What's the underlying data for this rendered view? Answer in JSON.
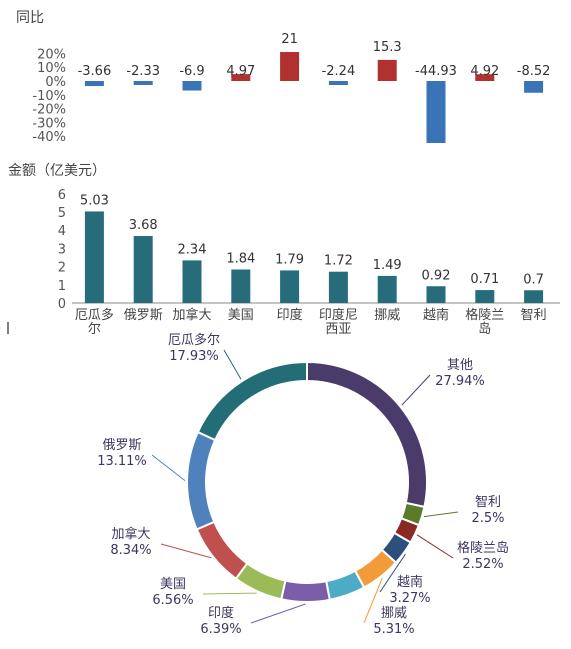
{
  "chart_data": [
    {
      "type": "bar",
      "title": "同比",
      "categories": [
        "厄瓜多尔",
        "俄罗斯",
        "加拿大",
        "美国",
        "印度",
        "印度尼西亚",
        "挪威",
        "越南",
        "格陵兰岛",
        "智利"
      ],
      "values": [
        -3.66,
        -2.33,
        -6.9,
        4.97,
        21,
        -2.24,
        15.3,
        -44.93,
        4.92,
        -8.52
      ],
      "value_labels": [
        "-3.66",
        "-2.33",
        "-6.9",
        "4.97",
        "21",
        "-2.24",
        "15.3",
        "-44.93",
        "4.92",
        "-8.52"
      ],
      "ylim": [
        -40,
        20
      ],
      "yticks": [
        "20%",
        "10%",
        "0%",
        "-10%",
        "-20%",
        "-30%",
        "-40%"
      ],
      "colors": {
        "positive": "#b13131",
        "negative": "#3b73b9"
      },
      "grid": false
    },
    {
      "type": "bar",
      "title": "金额（亿美元）",
      "categories": [
        "厄瓜多尔",
        "俄罗斯",
        "加拿大",
        "美国",
        "印度",
        "印度尼西亚",
        "挪威",
        "越南",
        "格陵兰岛",
        "智利"
      ],
      "category_lines": [
        [
          "厄瓜多",
          "尔"
        ],
        [
          "俄罗斯"
        ],
        [
          "加拿大"
        ],
        [
          "美国"
        ],
        [
          "印度"
        ],
        [
          "印度尼",
          "西亚"
        ],
        [
          "挪威"
        ],
        [
          "越南"
        ],
        [
          "格陵兰",
          "岛"
        ],
        [
          "智利"
        ]
      ],
      "values": [
        5.03,
        3.68,
        2.34,
        1.84,
        1.79,
        1.72,
        1.49,
        0.92,
        0.71,
        0.7
      ],
      "value_labels": [
        "5.03",
        "3.68",
        "2.34",
        "1.84",
        "1.79",
        "1.72",
        "1.49",
        "0.92",
        "0.71",
        "0.7"
      ],
      "ylim": [
        0,
        6
      ],
      "yticks": [
        "6",
        "5",
        "4",
        "3",
        "2",
        "1",
        "0"
      ],
      "color": "#276c7b",
      "grid": false
    },
    {
      "type": "pie",
      "donut": true,
      "slices": [
        {
          "name": "其他",
          "value": 27.94,
          "label": "27.94%",
          "color": "#4a3b6b"
        },
        {
          "name": "智利",
          "value": 2.5,
          "label": "2.5%",
          "color": "#5c7a2c"
        },
        {
          "name": "格陵兰岛",
          "value": 2.52,
          "label": "2.52%",
          "color": "#8b2a25"
        },
        {
          "name": "越南",
          "value": 3.27,
          "label": "3.27%",
          "color": "#2d4f7c"
        },
        {
          "name": "挪威",
          "value": 5.31,
          "label": "5.31%",
          "color": "#f39a3b"
        },
        {
          "name": "",
          "value": 4.79,
          "label": "",
          "color": "#4cacc8"
        },
        {
          "name": "印度",
          "value": 6.39,
          "label": "6.39%",
          "color": "#7a5ea8"
        },
        {
          "name": "美国",
          "value": 6.56,
          "label": "6.56%",
          "color": "#9bbb59"
        },
        {
          "name": "加拿大",
          "value": 8.34,
          "label": "8.34%",
          "color": "#c0504d"
        },
        {
          "name": "俄罗斯",
          "value": 13.11,
          "label": "13.11%",
          "color": "#4f81bd"
        },
        {
          "name": "厄瓜多尔",
          "value": 17.93,
          "label": "17.93%",
          "color": "#226d76"
        }
      ],
      "start_angle_deg": 0,
      "direction": "clockwise"
    }
  ]
}
